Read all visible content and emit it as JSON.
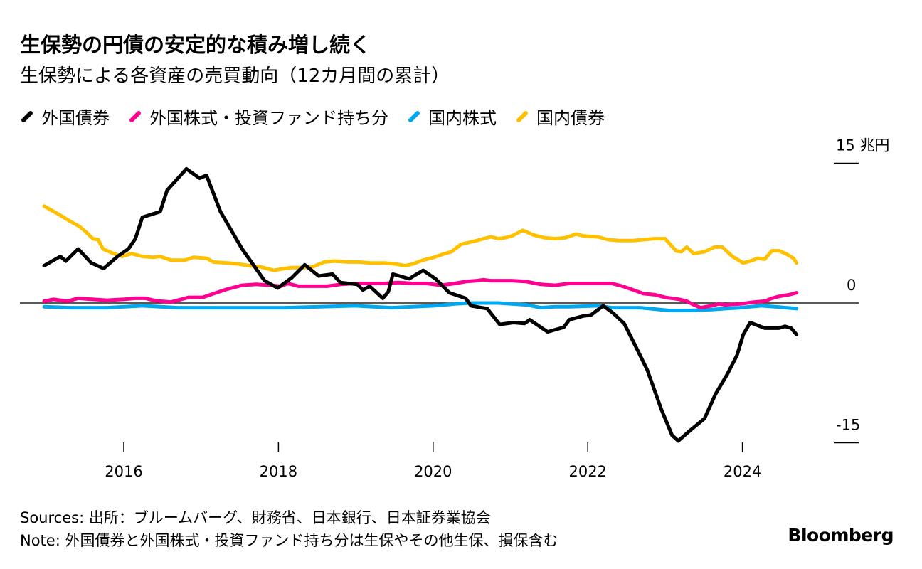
{
  "chart_data": {
    "type": "line",
    "title": "生保勢の円債の安定的な積み増し続く",
    "subtitle": "生保勢による各資産の売買動向（12カ月間の累計）",
    "y_unit": "兆円",
    "ylim": [
      -15,
      15
    ],
    "y_ticks": [
      {
        "value": 15,
        "label": "15"
      },
      {
        "value": 0,
        "label": "0"
      },
      {
        "value": -15,
        "label": "-15"
      }
    ],
    "xlim": [
      2014.9,
      2024.8
    ],
    "x_ticks": [
      {
        "value": 2016,
        "label": "2016"
      },
      {
        "value": 2018,
        "label": "2018"
      },
      {
        "value": 2020,
        "label": "2020"
      },
      {
        "value": 2022,
        "label": "2022"
      },
      {
        "value": 2024,
        "label": "2024"
      }
    ],
    "legend_placement": "top-left",
    "series": [
      {
        "name": "外国債券",
        "color": "#000000",
        "points": [
          [
            2014.97,
            4.0
          ],
          [
            2015.18,
            5.0
          ],
          [
            2015.25,
            4.5
          ],
          [
            2015.41,
            5.8
          ],
          [
            2015.58,
            4.3
          ],
          [
            2015.74,
            3.7
          ],
          [
            2015.92,
            5.0
          ],
          [
            2016.06,
            5.8
          ],
          [
            2016.15,
            6.9
          ],
          [
            2016.24,
            9.2
          ],
          [
            2016.47,
            9.8
          ],
          [
            2016.56,
            12.1
          ],
          [
            2016.81,
            14.4
          ],
          [
            2016.98,
            13.4
          ],
          [
            2017.07,
            13.7
          ],
          [
            2017.25,
            9.8
          ],
          [
            2017.53,
            5.8
          ],
          [
            2017.82,
            2.4
          ],
          [
            2017.99,
            1.6
          ],
          [
            2018.17,
            2.7
          ],
          [
            2018.34,
            4.1
          ],
          [
            2018.52,
            2.9
          ],
          [
            2018.7,
            3.1
          ],
          [
            2018.8,
            2.2
          ],
          [
            2019.02,
            2.0
          ],
          [
            2019.09,
            1.4
          ],
          [
            2019.18,
            1.8
          ],
          [
            2019.35,
            0.5
          ],
          [
            2019.42,
            1.2
          ],
          [
            2019.48,
            3.1
          ],
          [
            2019.69,
            2.6
          ],
          [
            2019.87,
            3.5
          ],
          [
            2020.03,
            2.6
          ],
          [
            2020.21,
            1.1
          ],
          [
            2020.42,
            0.5
          ],
          [
            2020.49,
            -0.3
          ],
          [
            2020.7,
            -0.6
          ],
          [
            2020.86,
            -2.3
          ],
          [
            2021.04,
            -2.1
          ],
          [
            2021.18,
            -2.2
          ],
          [
            2021.25,
            -1.8
          ],
          [
            2021.48,
            -3.1
          ],
          [
            2021.69,
            -2.6
          ],
          [
            2021.76,
            -1.8
          ],
          [
            2021.94,
            -1.4
          ],
          [
            2022.04,
            -1.3
          ],
          [
            2022.2,
            -0.3
          ],
          [
            2022.33,
            -1.1
          ],
          [
            2022.47,
            -2.2
          ],
          [
            2022.61,
            -4.5
          ],
          [
            2022.77,
            -7.2
          ],
          [
            2022.95,
            -11.4
          ],
          [
            2023.09,
            -14.2
          ],
          [
            2023.17,
            -14.8
          ],
          [
            2023.32,
            -13.7
          ],
          [
            2023.51,
            -12.4
          ],
          [
            2023.65,
            -9.8
          ],
          [
            2023.8,
            -7.7
          ],
          [
            2023.93,
            -5.6
          ],
          [
            2024.01,
            -3.4
          ],
          [
            2024.1,
            -2.1
          ],
          [
            2024.29,
            -2.7
          ],
          [
            2024.47,
            -2.7
          ],
          [
            2024.55,
            -2.5
          ],
          [
            2024.63,
            -2.7
          ],
          [
            2024.7,
            -3.4
          ]
        ]
      },
      {
        "name": "外国株式・投資ファンド持ち分",
        "color": "#ff0090",
        "points": [
          [
            2014.97,
            0.2
          ],
          [
            2015.09,
            0.4
          ],
          [
            2015.27,
            0.2
          ],
          [
            2015.41,
            0.5
          ],
          [
            2015.59,
            0.4
          ],
          [
            2015.78,
            0.3
          ],
          [
            2016.01,
            0.4
          ],
          [
            2016.15,
            0.5
          ],
          [
            2016.28,
            0.5
          ],
          [
            2016.38,
            0.3
          ],
          [
            2016.47,
            0.2
          ],
          [
            2016.61,
            0.1
          ],
          [
            2016.7,
            0.3
          ],
          [
            2016.84,
            0.6
          ],
          [
            2017.02,
            0.6
          ],
          [
            2017.16,
            1.0
          ],
          [
            2017.34,
            1.5
          ],
          [
            2017.53,
            1.9
          ],
          [
            2017.71,
            2.0
          ],
          [
            2017.9,
            1.9
          ],
          [
            2018.03,
            1.8
          ],
          [
            2018.12,
            2.1
          ],
          [
            2018.26,
            1.8
          ],
          [
            2018.45,
            1.8
          ],
          [
            2018.63,
            1.8
          ],
          [
            2018.81,
            2.0
          ],
          [
            2019.0,
            2.1
          ],
          [
            2019.18,
            2.1
          ],
          [
            2019.37,
            2.1
          ],
          [
            2019.55,
            2.2
          ],
          [
            2019.74,
            2.1
          ],
          [
            2019.92,
            2.1
          ],
          [
            2020.1,
            1.9
          ],
          [
            2020.28,
            2.1
          ],
          [
            2020.42,
            2.3
          ],
          [
            2020.56,
            2.4
          ],
          [
            2020.65,
            2.5
          ],
          [
            2020.75,
            2.4
          ],
          [
            2020.84,
            2.4
          ],
          [
            2021.02,
            2.4
          ],
          [
            2021.21,
            2.3
          ],
          [
            2021.39,
            2.0
          ],
          [
            2021.58,
            1.9
          ],
          [
            2021.76,
            2.1
          ],
          [
            2021.94,
            2.1
          ],
          [
            2022.13,
            2.1
          ],
          [
            2022.31,
            2.1
          ],
          [
            2022.45,
            1.8
          ],
          [
            2022.59,
            1.4
          ],
          [
            2022.72,
            1.0
          ],
          [
            2022.86,
            0.9
          ],
          [
            2023.0,
            0.6
          ],
          [
            2023.18,
            0.4
          ],
          [
            2023.28,
            0.2
          ],
          [
            2023.37,
            -0.2
          ],
          [
            2023.46,
            -0.5
          ],
          [
            2023.6,
            -0.3
          ],
          [
            2023.69,
            -0.1
          ],
          [
            2023.78,
            -0.2
          ],
          [
            2023.97,
            -0.1
          ],
          [
            2024.06,
            0.0
          ],
          [
            2024.15,
            0.1
          ],
          [
            2024.29,
            0.2
          ],
          [
            2024.38,
            0.5
          ],
          [
            2024.47,
            0.7
          ],
          [
            2024.61,
            0.9
          ],
          [
            2024.7,
            1.1
          ]
        ]
      },
      {
        "name": "国内株式",
        "color": "#00a8f0",
        "points": [
          [
            2014.97,
            -0.4
          ],
          [
            2015.32,
            -0.5
          ],
          [
            2015.78,
            -0.5
          ],
          [
            2016.24,
            -0.3
          ],
          [
            2016.7,
            -0.5
          ],
          [
            2017.16,
            -0.5
          ],
          [
            2017.62,
            -0.5
          ],
          [
            2018.08,
            -0.5
          ],
          [
            2018.99,
            -0.3
          ],
          [
            2019.46,
            -0.5
          ],
          [
            2020.01,
            -0.3
          ],
          [
            2020.28,
            -0.1
          ],
          [
            2020.47,
            0.0
          ],
          [
            2020.84,
            0.0
          ],
          [
            2021.21,
            -0.2
          ],
          [
            2021.39,
            -0.5
          ],
          [
            2021.58,
            -0.4
          ],
          [
            2021.76,
            -0.4
          ],
          [
            2022.13,
            -0.3
          ],
          [
            2022.31,
            -0.5
          ],
          [
            2022.68,
            -0.5
          ],
          [
            2023.05,
            -0.8
          ],
          [
            2023.32,
            -0.8
          ],
          [
            2023.6,
            -0.7
          ],
          [
            2023.97,
            -0.5
          ],
          [
            2024.24,
            -0.3
          ],
          [
            2024.42,
            -0.4
          ],
          [
            2024.7,
            -0.6
          ]
        ]
      },
      {
        "name": "国内債券",
        "color": "#ffc000",
        "points": [
          [
            2014.97,
            10.4
          ],
          [
            2015.14,
            9.6
          ],
          [
            2015.32,
            8.7
          ],
          [
            2015.43,
            8.2
          ],
          [
            2015.5,
            7.7
          ],
          [
            2015.6,
            6.9
          ],
          [
            2015.67,
            6.8
          ],
          [
            2015.73,
            5.8
          ],
          [
            2015.87,
            5.3
          ],
          [
            2015.98,
            5.0
          ],
          [
            2016.1,
            5.3
          ],
          [
            2016.24,
            5.0
          ],
          [
            2016.38,
            4.9
          ],
          [
            2016.47,
            5.0
          ],
          [
            2016.61,
            4.6
          ],
          [
            2016.79,
            4.6
          ],
          [
            2016.9,
            4.9
          ],
          [
            2017.07,
            4.8
          ],
          [
            2017.16,
            4.4
          ],
          [
            2017.34,
            4.3
          ],
          [
            2017.48,
            4.2
          ],
          [
            2017.62,
            4.0
          ],
          [
            2017.76,
            3.9
          ],
          [
            2017.94,
            3.5
          ],
          [
            2018.08,
            3.7
          ],
          [
            2018.17,
            3.8
          ],
          [
            2018.34,
            3.8
          ],
          [
            2018.45,
            3.9
          ],
          [
            2018.59,
            4.4
          ],
          [
            2018.72,
            4.5
          ],
          [
            2018.91,
            4.4
          ],
          [
            2019.05,
            4.4
          ],
          [
            2019.18,
            4.3
          ],
          [
            2019.37,
            4.3
          ],
          [
            2019.51,
            4.2
          ],
          [
            2019.64,
            4.0
          ],
          [
            2019.74,
            4.2
          ],
          [
            2019.87,
            4.6
          ],
          [
            2020.01,
            4.9
          ],
          [
            2020.15,
            5.3
          ],
          [
            2020.24,
            5.5
          ],
          [
            2020.36,
            6.3
          ],
          [
            2020.52,
            6.6
          ],
          [
            2020.65,
            6.9
          ],
          [
            2020.75,
            7.1
          ],
          [
            2020.84,
            6.9
          ],
          [
            2020.93,
            7.0
          ],
          [
            2021.02,
            7.2
          ],
          [
            2021.16,
            7.8
          ],
          [
            2021.3,
            7.3
          ],
          [
            2021.44,
            7.0
          ],
          [
            2021.58,
            6.9
          ],
          [
            2021.71,
            7.0
          ],
          [
            2021.85,
            7.4
          ],
          [
            2021.94,
            7.2
          ],
          [
            2022.13,
            7.1
          ],
          [
            2022.26,
            6.8
          ],
          [
            2022.4,
            6.7
          ],
          [
            2022.59,
            6.7
          ],
          [
            2022.72,
            6.8
          ],
          [
            2022.86,
            6.9
          ],
          [
            2023.0,
            6.9
          ],
          [
            2023.14,
            5.6
          ],
          [
            2023.21,
            5.5
          ],
          [
            2023.28,
            6.0
          ],
          [
            2023.37,
            5.3
          ],
          [
            2023.51,
            5.5
          ],
          [
            2023.64,
            6.0
          ],
          [
            2023.74,
            6.0
          ],
          [
            2023.87,
            5.0
          ],
          [
            2024.01,
            4.3
          ],
          [
            2024.1,
            4.5
          ],
          [
            2024.2,
            4.8
          ],
          [
            2024.29,
            4.7
          ],
          [
            2024.38,
            5.6
          ],
          [
            2024.47,
            5.6
          ],
          [
            2024.56,
            5.3
          ],
          [
            2024.66,
            4.8
          ],
          [
            2024.7,
            4.3
          ]
        ]
      }
    ]
  },
  "notes": {
    "sources": "Sources: 出所：ブルームバーグ、財務省、日本銀行、日本証券業協会",
    "note": "Note: 外国債券と外国株式・投資ファンド持ち分は生保やその他生保、損保含む"
  },
  "brand": "Bloomberg"
}
